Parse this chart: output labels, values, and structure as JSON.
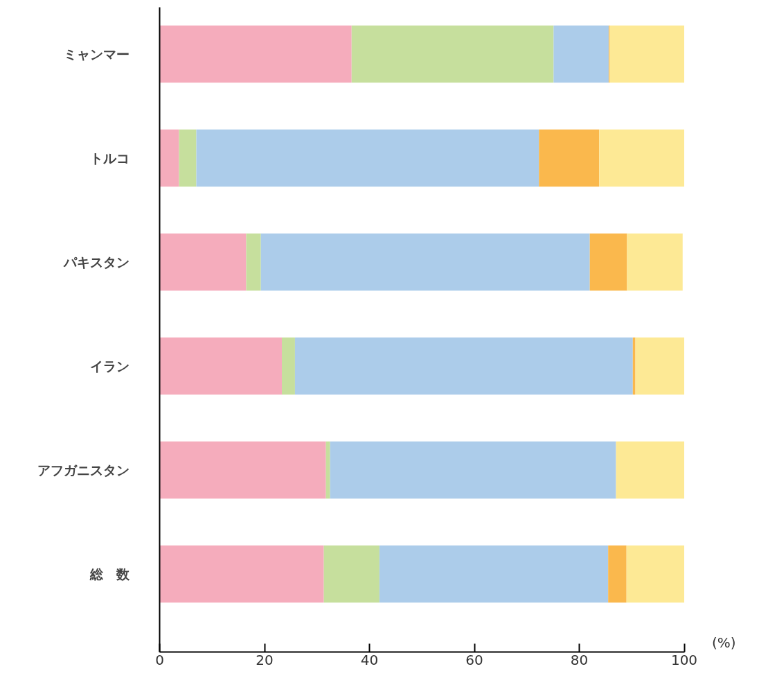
{
  "chart_data": {
    "type": "bar",
    "orientation": "horizontal",
    "stacked": true,
    "categories": [
      "ミャンマー",
      "トルコ",
      "パキスタン",
      "イラン",
      "アフガニスタン",
      "総　数"
    ],
    "series": [
      {
        "color": "#f5acbc",
        "values": [
          36.6,
          3.7,
          16.5,
          23.3,
          31.7,
          31.3
        ]
      },
      {
        "color": "#c6df9d",
        "values": [
          38.5,
          3.3,
          2.8,
          2.5,
          0.8,
          10.6
        ]
      },
      {
        "color": "#acccea",
        "values": [
          10.5,
          65.3,
          62.7,
          64.4,
          54.5,
          43.6
        ]
      },
      {
        "color": "#fab84d",
        "values": [
          0.2,
          11.5,
          7.1,
          0.5,
          0,
          3.5
        ]
      },
      {
        "color": "#fde995",
        "values": [
          14.2,
          16.2,
          10.6,
          9.3,
          13.0,
          11.0
        ]
      }
    ],
    "xlim": [
      0,
      100
    ],
    "xticks": [
      0,
      20,
      40,
      60,
      80,
      100
    ],
    "annotations": [
      "(%)"
    ],
    "grid": false
  }
}
